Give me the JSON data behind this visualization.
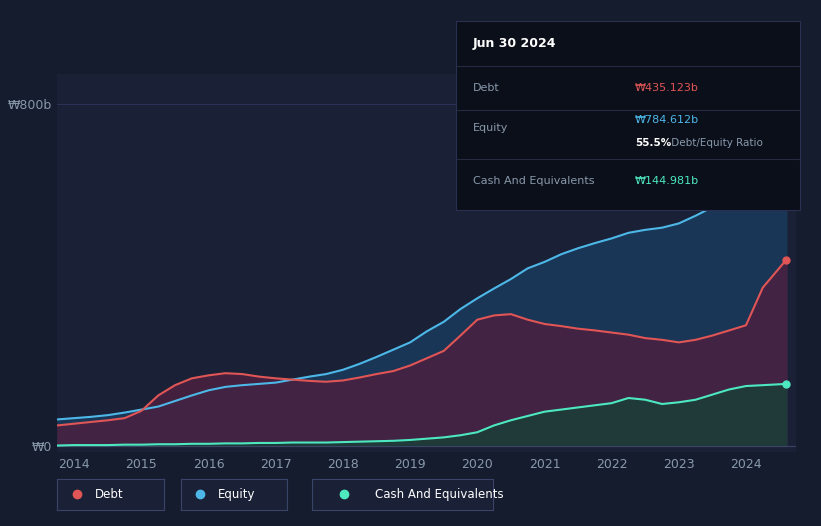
{
  "bg_color": "#151c2e",
  "plot_bg_color": "#1a2035",
  "grid_color": "#2a3355",
  "tooltip_title": "Jun 30 2024",
  "tooltip_debt_label": "Debt",
  "tooltip_debt_val": "₩435.123b",
  "tooltip_equity_label": "Equity",
  "tooltip_equity_val": "₩784.612b",
  "tooltip_ratio": "55.5%",
  "tooltip_ratio_text": " Debt/Equity Ratio",
  "tooltip_cash_label": "Cash And Equivalents",
  "tooltip_cash_val": "₩144.981b",
  "ylabel_800": "₩800b",
  "ylabel_0": "₩0",
  "xlabel_years": [
    "2014",
    "2015",
    "2016",
    "2017",
    "2018",
    "2019",
    "2020",
    "2021",
    "2022",
    "2023",
    "2024"
  ],
  "legend_items": [
    "Debt",
    "Equity",
    "Cash And Equivalents"
  ],
  "debt_color": "#e05555",
  "equity_color": "#4db8e8",
  "cash_color": "#4de8c0",
  "years": [
    2013.75,
    2014.0,
    2014.25,
    2014.5,
    2014.75,
    2015.0,
    2015.25,
    2015.5,
    2015.75,
    2016.0,
    2016.25,
    2016.5,
    2016.75,
    2017.0,
    2017.25,
    2017.5,
    2017.75,
    2018.0,
    2018.25,
    2018.5,
    2018.75,
    2019.0,
    2019.25,
    2019.5,
    2019.75,
    2020.0,
    2020.25,
    2020.5,
    2020.75,
    2021.0,
    2021.25,
    2021.5,
    2021.75,
    2022.0,
    2022.25,
    2022.5,
    2022.75,
    2023.0,
    2023.25,
    2023.5,
    2023.75,
    2024.0,
    2024.25,
    2024.6
  ],
  "equity": [
    62,
    65,
    68,
    72,
    78,
    85,
    92,
    105,
    118,
    130,
    138,
    142,
    145,
    148,
    155,
    162,
    168,
    178,
    192,
    208,
    225,
    242,
    268,
    290,
    320,
    345,
    368,
    390,
    415,
    430,
    448,
    462,
    474,
    485,
    498,
    505,
    510,
    520,
    538,
    558,
    580,
    610,
    680,
    784
  ],
  "debt": [
    48,
    52,
    56,
    60,
    65,
    82,
    118,
    142,
    158,
    165,
    170,
    168,
    162,
    158,
    155,
    152,
    150,
    153,
    160,
    168,
    175,
    188,
    205,
    222,
    258,
    295,
    305,
    308,
    295,
    285,
    280,
    274,
    270,
    265,
    260,
    252,
    248,
    242,
    248,
    258,
    270,
    282,
    370,
    435
  ],
  "cash": [
    1,
    2,
    2,
    2,
    3,
    3,
    4,
    4,
    5,
    5,
    6,
    6,
    7,
    7,
    8,
    8,
    8,
    9,
    10,
    11,
    12,
    14,
    17,
    20,
    25,
    32,
    48,
    60,
    70,
    80,
    85,
    90,
    95,
    100,
    112,
    108,
    98,
    102,
    108,
    120,
    132,
    140,
    142,
    145
  ]
}
